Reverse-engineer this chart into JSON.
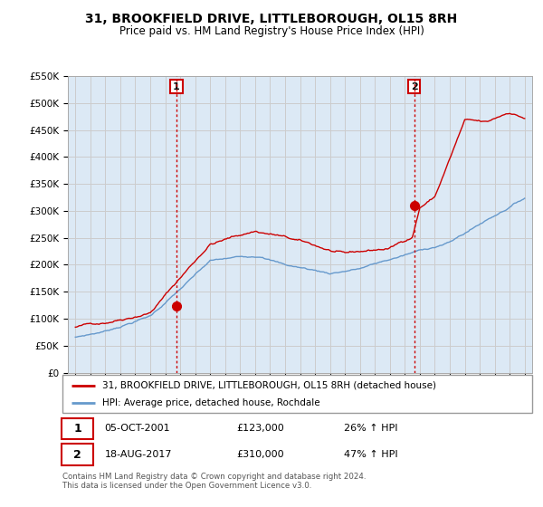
{
  "title": "31, BROOKFIELD DRIVE, LITTLEBOROUGH, OL15 8RH",
  "subtitle": "Price paid vs. HM Land Registry's House Price Index (HPI)",
  "legend_line1": "31, BROOKFIELD DRIVE, LITTLEBOROUGH, OL15 8RH (detached house)",
  "legend_line2": "HPI: Average price, detached house, Rochdale",
  "marker1_date": "05-OCT-2001",
  "marker1_price": "£123,000",
  "marker1_pct": "26% ↑ HPI",
  "marker2_date": "18-AUG-2017",
  "marker2_price": "£310,000",
  "marker2_pct": "47% ↑ HPI",
  "footnote": "Contains HM Land Registry data © Crown copyright and database right 2024.\nThis data is licensed under the Open Government Licence v3.0.",
  "sale1_x": 2001.75,
  "sale1_y": 123000,
  "sale2_x": 2017.625,
  "sale2_y": 310000,
  "line_color_property": "#cc0000",
  "line_color_hpi": "#6699cc",
  "marker_color_property": "#cc0000",
  "vline_color": "#cc0000",
  "grid_color": "#cccccc",
  "chart_bg_color": "#dce9f5",
  "background_color": "#ffffff",
  "ylim": [
    0,
    550000
  ],
  "xlim": [
    1994.5,
    2025.5
  ]
}
